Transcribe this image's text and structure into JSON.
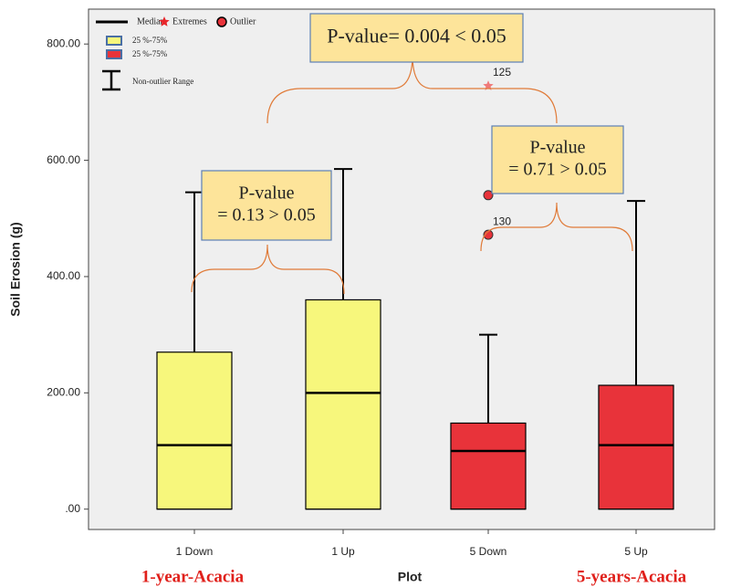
{
  "chart_data": {
    "type": "box",
    "x_label": "Plot",
    "y_label": "Soil Erosion (g)",
    "categories": [
      "1 Down",
      "1 Up",
      "5 Down",
      "5 Up"
    ],
    "ylim": [
      -35,
      860
    ],
    "yticks": [
      {
        "value": 0,
        "label": ".00"
      },
      {
        "value": 200,
        "label": "200.00"
      },
      {
        "value": 400,
        "label": "400.00"
      },
      {
        "value": 600,
        "label": "600.00"
      },
      {
        "value": 800,
        "label": "800.00"
      }
    ],
    "boxes": [
      {
        "whisker_low": 0,
        "q1": 0,
        "median": 110,
        "q3": 270,
        "whisker_high": 545,
        "color": "#f7f77c"
      },
      {
        "whisker_low": 0,
        "q1": 0,
        "median": 200,
        "q3": 360,
        "whisker_high": 585,
        "color": "#f7f77c"
      },
      {
        "whisker_low": 0,
        "q1": 0,
        "median": 100,
        "q3": 148,
        "whisker_high": 300,
        "color": "#e8333a",
        "outliers": [
          {
            "value": 540
          },
          {
            "value": 472,
            "label": "130"
          }
        ],
        "extremes": [
          {
            "value": 728,
            "label": "125"
          }
        ]
      },
      {
        "whisker_low": 0,
        "q1": 0,
        "median": 110,
        "q3": 213,
        "whisker_high": 530,
        "color": "#e8333a"
      }
    ],
    "legend": {
      "median": "Median",
      "extremes": "Extremes",
      "outlier": "Outlier",
      "box_labels": [
        "25 %-75%",
        "25 %-75%"
      ],
      "range": "Non-outlier Range"
    },
    "annotations": [
      {
        "lines": [
          "P-value= 0.004 < 0.05"
        ]
      },
      {
        "lines": [
          "P-value",
          "= 0.13 > 0.05"
        ]
      },
      {
        "lines": [
          "P-value",
          "= 0.71 > 0.05"
        ]
      }
    ],
    "group_labels": [
      "1-year-Acacia",
      "5-years-Acacia"
    ]
  }
}
